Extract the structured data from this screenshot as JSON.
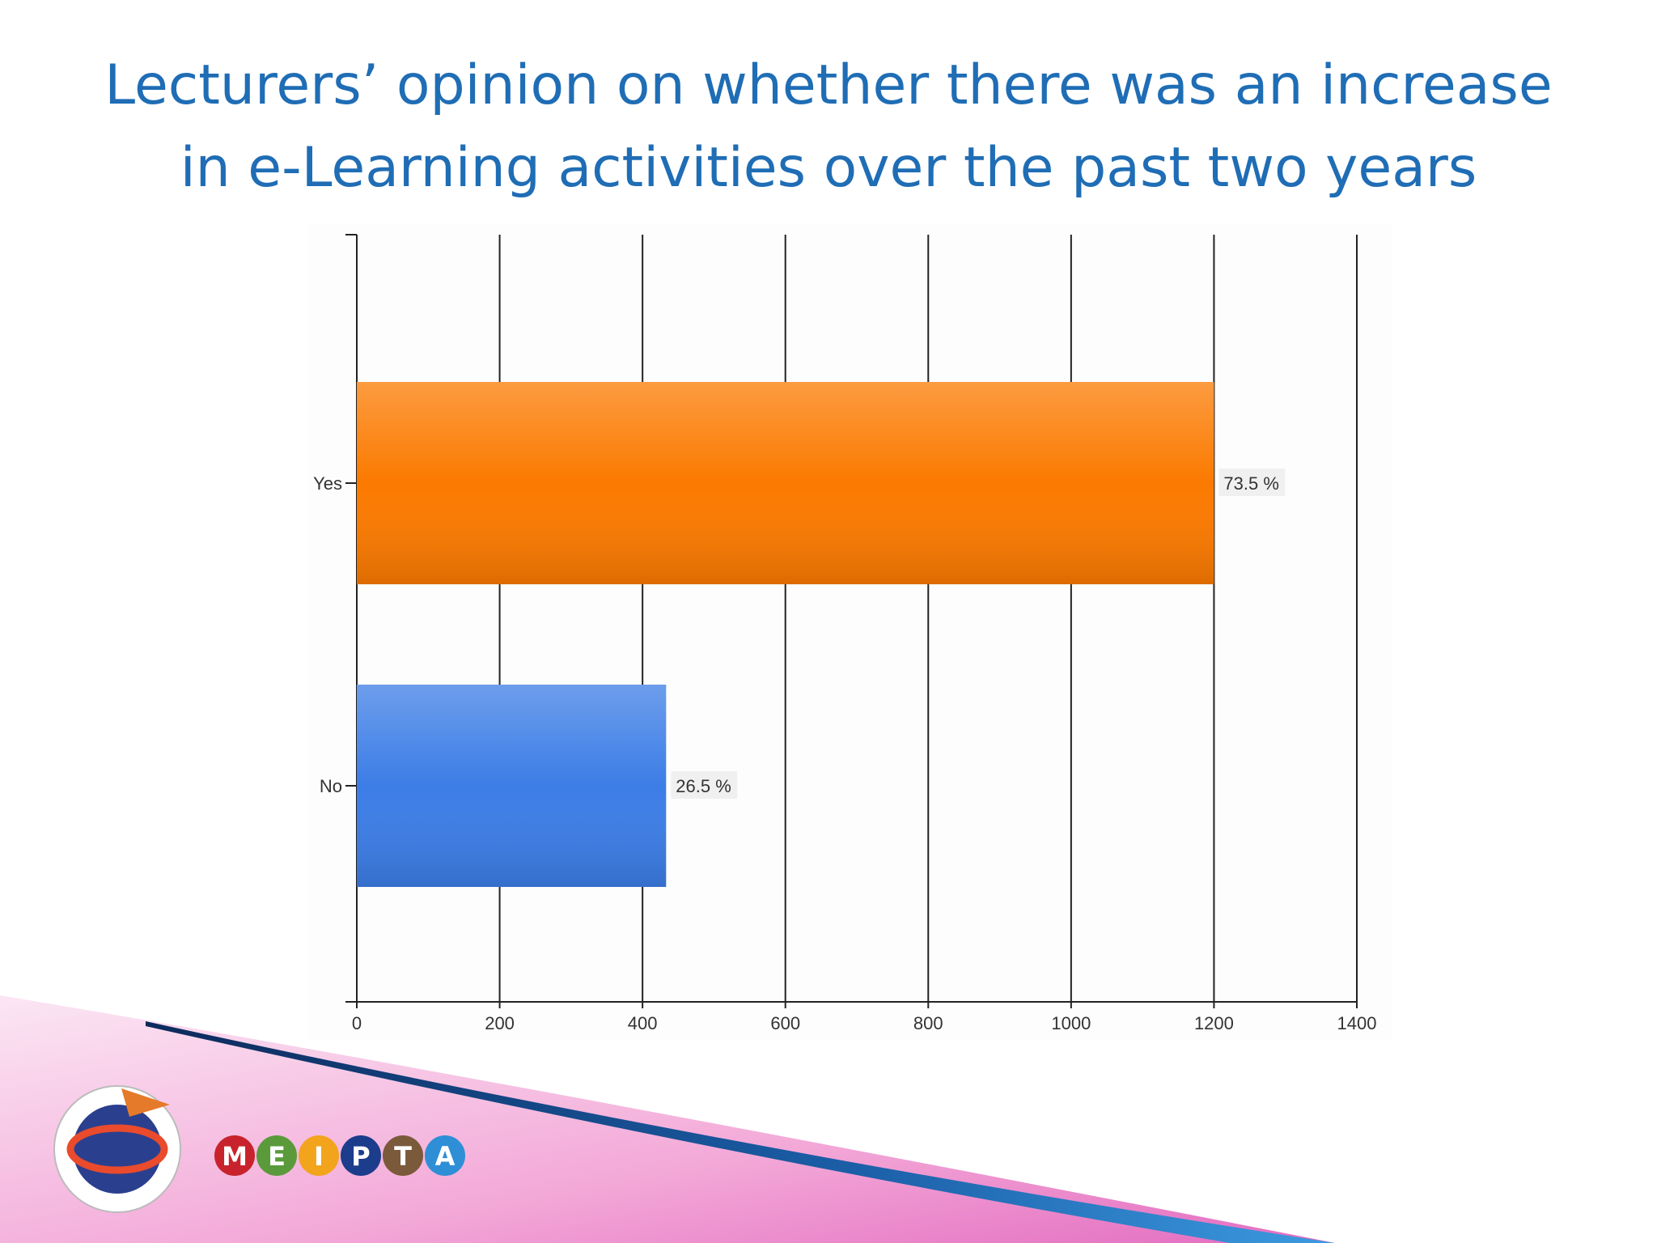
{
  "chart_data": {
    "type": "bar",
    "orientation": "horizontal",
    "title": [
      "Lecturers’ opinion on whether there was an increase",
      "in e-Learning activities over the past two years"
    ],
    "categories": [
      "Yes",
      "No"
    ],
    "values": [
      1200,
      433
    ],
    "colors": [
      "#fb7a00",
      "#3c7de6"
    ],
    "share_labels": [
      "73.5 %",
      "26.5 %"
    ],
    "xlim": [
      0,
      1400
    ],
    "xticks": [
      0,
      200,
      400,
      600,
      800,
      1000,
      1200,
      1400
    ],
    "grid": true
  },
  "logo": {
    "letters": [
      "M",
      "E",
      "I",
      "P",
      "T",
      "A"
    ]
  }
}
